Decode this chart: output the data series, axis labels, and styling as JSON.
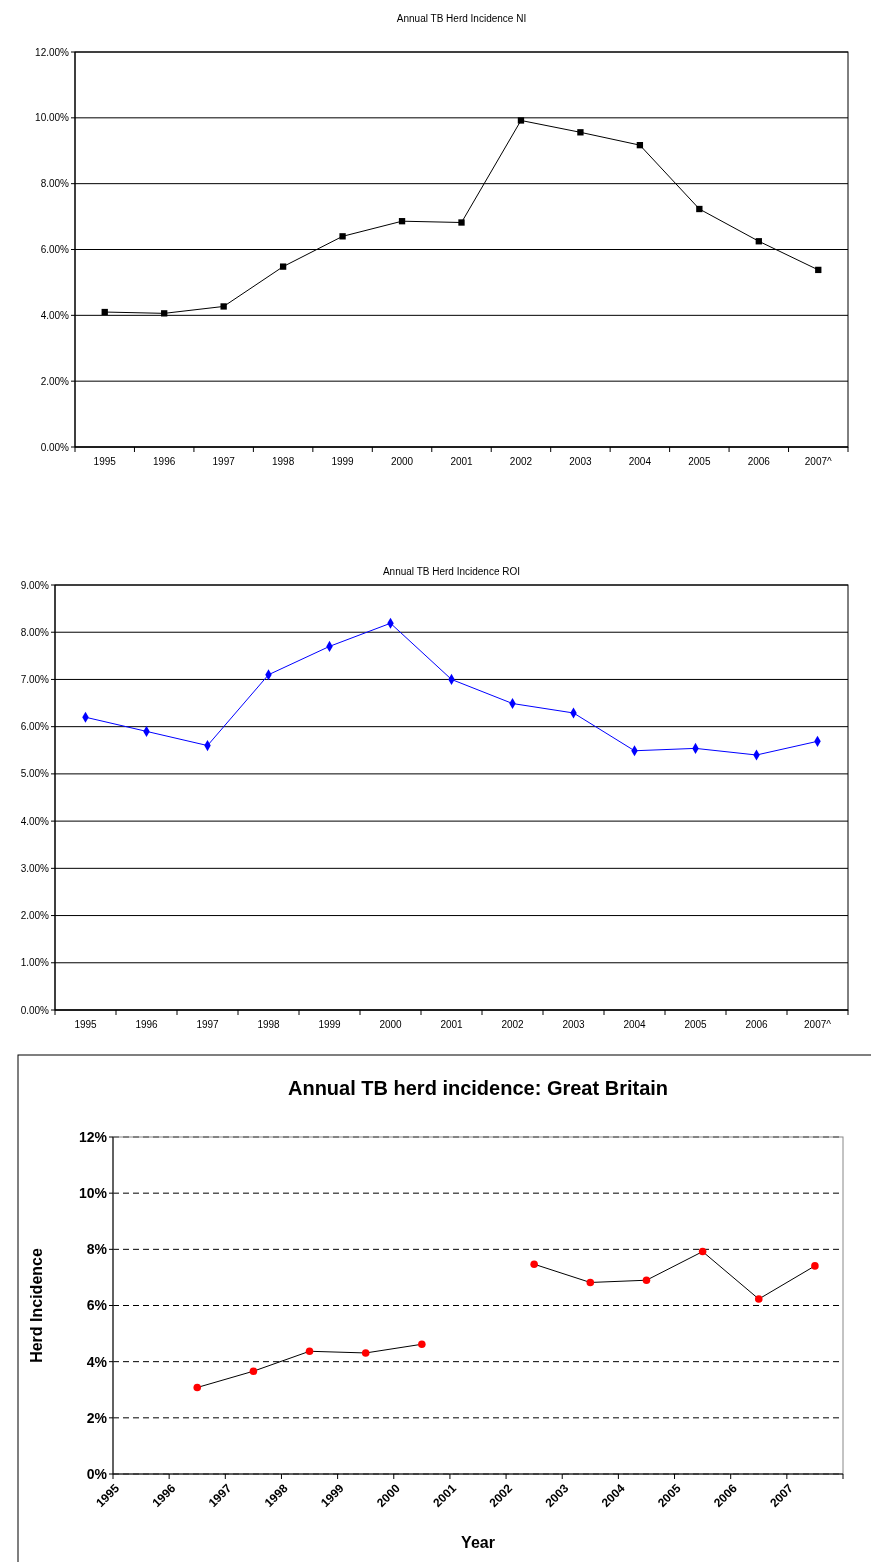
{
  "chart_data": [
    {
      "type": "line",
      "title": "Annual TB Herd Incidence NI",
      "categories": [
        "1995",
        "1996",
        "1997",
        "1998",
        "1999",
        "2000",
        "2001",
        "2002",
        "2003",
        "2004",
        "2005",
        "2006",
        "2007^"
      ],
      "series": [
        {
          "color": "#000000",
          "values": [
            4.1,
            4.06,
            4.27,
            5.48,
            6.4,
            6.86,
            6.82,
            9.92,
            9.56,
            9.17,
            7.23,
            6.25,
            5.38
          ]
        }
      ],
      "ylim": [
        0,
        12
      ],
      "yticks": [
        {
          "value": 0,
          "label": "0.00%"
        },
        {
          "value": 2,
          "label": "2.00%"
        },
        {
          "value": 4,
          "label": "4.00%"
        },
        {
          "value": 6,
          "label": "6.00%"
        },
        {
          "value": 8,
          "label": "8.00%"
        },
        {
          "value": 10,
          "label": "10.00%"
        },
        {
          "value": 12,
          "label": "12.00%"
        }
      ],
      "grid": "y",
      "marker": "square",
      "line_style": "solid"
    },
    {
      "type": "line",
      "title": "Annual TB Herd Incidence ROI",
      "categories": [
        "1995",
        "1996",
        "1997",
        "1998",
        "1999",
        "2000",
        "2001",
        "2002",
        "2003",
        "2004",
        "2005",
        "2006",
        "2007^"
      ],
      "series": [
        {
          "color": "#0000ff",
          "values": [
            6.2,
            5.9,
            5.6,
            7.1,
            7.7,
            8.19,
            7.0,
            6.49,
            6.29,
            5.49,
            5.54,
            5.4,
            5.69
          ]
        }
      ],
      "ylim": [
        0,
        9
      ],
      "yticks": [
        {
          "value": 0,
          "label": "0.00%"
        },
        {
          "value": 1,
          "label": "1.00%"
        },
        {
          "value": 2,
          "label": "2.00%"
        },
        {
          "value": 3,
          "label": "3.00%"
        },
        {
          "value": 4,
          "label": "4.00%"
        },
        {
          "value": 5,
          "label": "5.00%"
        },
        {
          "value": 6,
          "label": "6.00%"
        },
        {
          "value": 7,
          "label": "7.00%"
        },
        {
          "value": 8,
          "label": "8.00%"
        },
        {
          "value": 9,
          "label": "9.00%"
        }
      ],
      "grid": "y",
      "marker": "diamond",
      "line_style": "solid"
    },
    {
      "type": "line",
      "title": "Annual TB herd incidence: Great Britain",
      "xlabel": "Year",
      "ylabel": "Herd Incidence",
      "series": [
        {
          "color": "#ff0000",
          "x": [
            1996.5,
            1997.5,
            1998.5,
            1999.5,
            2000.5,
            2001.5,
            2002.5,
            2003.5,
            2004.5,
            2005.5,
            2006.5,
            2007.5
          ],
          "values": [
            3.08,
            3.66,
            4.37,
            4.31,
            4.62,
            null,
            7.47,
            6.82,
            6.9,
            7.92,
            6.23,
            7.41
          ]
        }
      ],
      "xlim": [
        1995,
        2008
      ],
      "xticks": [
        1995,
        1996,
        1997,
        1998,
        1999,
        2000,
        2001,
        2002,
        2003,
        2004,
        2005,
        2006,
        2007,
        {
          "value": 2008,
          "label": null
        }
      ],
      "ylim": [
        0,
        12
      ],
      "yticks": [
        {
          "value": 0,
          "label": "0%"
        },
        {
          "value": 2,
          "label": "2%"
        },
        {
          "value": 4,
          "label": "4%"
        },
        {
          "value": 6,
          "label": "6%"
        },
        {
          "value": 8,
          "label": "8%"
        },
        {
          "value": 10,
          "label": "10%"
        },
        {
          "value": 12,
          "label": "12%"
        }
      ],
      "grid": "y",
      "marker": "circle",
      "line_style": "solid"
    }
  ]
}
